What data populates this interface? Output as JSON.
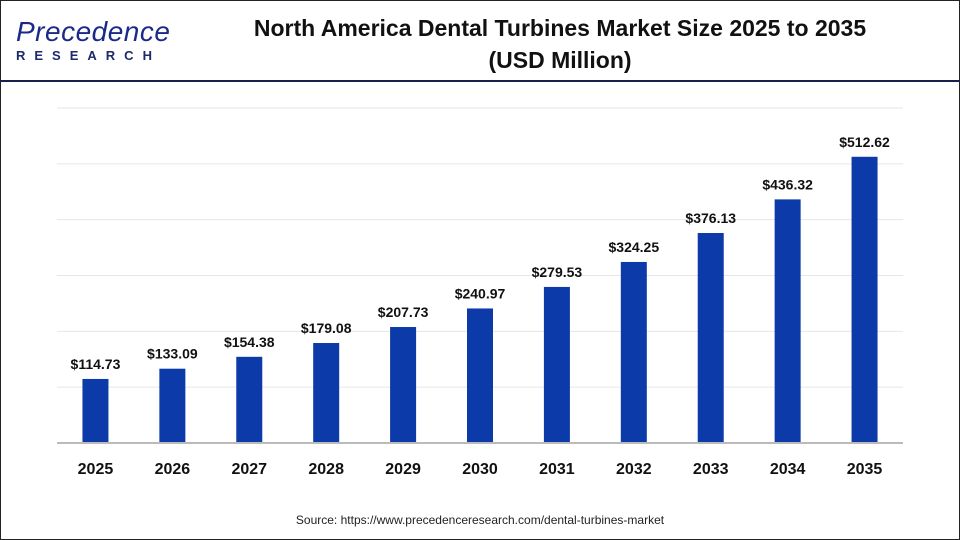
{
  "logo": {
    "top": "Precedence",
    "bottom": "RESEARCH"
  },
  "title_line1": "North America Dental Turbines Market Size 2025 to 2035",
  "title_line2": "(USD Million)",
  "source": "Source: https://www.precedenceresearch.com/dental-turbines-market",
  "colors": {
    "bar": "#0d3aa9",
    "grid": "#e6e6e6",
    "axis": "#bbbbbb"
  },
  "chart_data": {
    "type": "bar",
    "title": "North America Dental Turbines Market Size 2025 to 2035 (USD Million)",
    "categories": [
      "2025",
      "2026",
      "2027",
      "2028",
      "2029",
      "2030",
      "2031",
      "2032",
      "2033",
      "2034",
      "2035"
    ],
    "values": [
      114.73,
      133.09,
      154.38,
      179.08,
      207.73,
      240.97,
      279.53,
      324.25,
      376.13,
      436.32,
      512.62
    ],
    "labels": [
      "$114.73",
      "$133.09",
      "$154.38",
      "$179.08",
      "$207.73",
      "$240.97",
      "$279.53",
      "$324.25",
      "$376.13",
      "$436.32",
      "$512.62"
    ],
    "ylim": [
      0,
      600
    ],
    "grid": true,
    "xlabel": "",
    "ylabel": ""
  }
}
